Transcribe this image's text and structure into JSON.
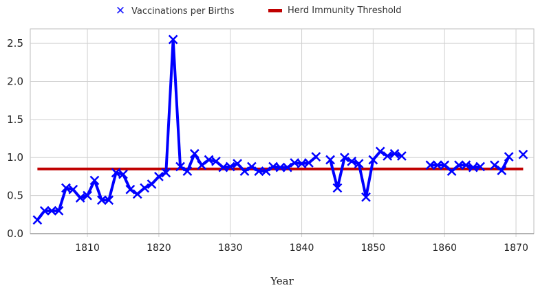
{
  "chart_data": {
    "type": "line",
    "title": "",
    "xlabel": "Year",
    "ylabel": "",
    "xlim": [
      1802,
      1872.5
    ],
    "ylim": [
      0,
      2.6
    ],
    "x_ticks": [
      "1810",
      "1820",
      "1830",
      "1840",
      "1850",
      "1860",
      "1870"
    ],
    "y_ticks": [
      "0.0",
      "0.5",
      "1.0",
      "1.5",
      "2.0",
      "2.5"
    ],
    "grid": true,
    "legend_position": "top",
    "series": [
      {
        "name": "Vaccinations per Births",
        "color": "#0000ff",
        "marker": "x",
        "segments": [
          [
            [
              1803,
              0.18
            ],
            [
              1804,
              0.3
            ],
            [
              1805,
              0.3
            ],
            [
              1806,
              0.3
            ],
            [
              1807,
              0.6
            ],
            [
              1808,
              0.58
            ],
            [
              1809,
              0.47
            ],
            [
              1810,
              0.5
            ],
            [
              1811,
              0.7
            ],
            [
              1812,
              0.44
            ],
            [
              1813,
              0.44
            ],
            [
              1814,
              0.8
            ],
            [
              1815,
              0.78
            ],
            [
              1816,
              0.58
            ],
            [
              1817,
              0.52
            ],
            [
              1818,
              0.6
            ],
            [
              1819,
              0.65
            ],
            [
              1820,
              0.75
            ],
            [
              1821,
              0.8
            ],
            [
              1822,
              2.55
            ],
            [
              1823,
              0.88
            ],
            [
              1824,
              0.82
            ],
            [
              1825,
              1.05
            ],
            [
              1826,
              0.9
            ],
            [
              1827,
              0.97
            ],
            [
              1828,
              0.95
            ],
            [
              1829,
              0.87
            ],
            [
              1830,
              0.88
            ],
            [
              1831,
              0.92
            ],
            [
              1832,
              0.82
            ],
            [
              1833,
              0.88
            ],
            [
              1834,
              0.82
            ],
            [
              1835,
              0.82
            ],
            [
              1836,
              0.88
            ],
            [
              1837,
              0.87
            ],
            [
              1838,
              0.87
            ],
            [
              1839,
              0.93
            ],
            [
              1840,
              0.92
            ],
            [
              1841,
              0.93
            ],
            [
              1842,
              1.01
            ]
          ],
          [
            [
              1844,
              0.97
            ],
            [
              1845,
              0.6
            ],
            [
              1846,
              1.0
            ],
            [
              1847,
              0.95
            ],
            [
              1848,
              0.92
            ],
            [
              1849,
              0.48
            ],
            [
              1850,
              0.97
            ],
            [
              1851,
              1.08
            ],
            [
              1852,
              1.02
            ],
            [
              1853,
              1.05
            ],
            [
              1854,
              1.02
            ]
          ],
          [
            [
              1858,
              0.9
            ],
            [
              1859,
              0.9
            ],
            [
              1860,
              0.9
            ],
            [
              1861,
              0.82
            ],
            [
              1862,
              0.9
            ],
            [
              1863,
              0.9
            ],
            [
              1864,
              0.87
            ],
            [
              1865,
              0.88
            ]
          ],
          [
            [
              1867,
              0.9
            ],
            [
              1868,
              0.83
            ],
            [
              1869,
              1.01
            ]
          ],
          [
            [
              1871,
              1.04
            ]
          ]
        ]
      },
      {
        "name": "Herd Immunity Threshold",
        "color": "#c00000",
        "marker": "none",
        "x": [
          1803,
          1871
        ],
        "y": [
          0.85,
          0.85
        ]
      }
    ]
  }
}
